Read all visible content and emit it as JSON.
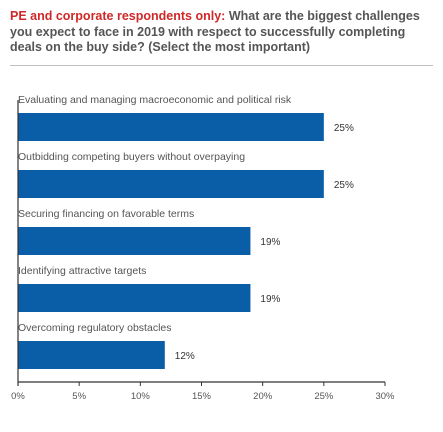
{
  "title": {
    "lead": "PE and corporate respondents only:",
    "text": "What are the biggest challenges you expect to face in 2019 with respect to successfully completing deals on the buy side? (Select the most important)"
  },
  "colors": {
    "bar": "#0a5ea8",
    "accent": "#d02828",
    "axis": "#333333"
  },
  "chart_data": {
    "type": "bar",
    "orientation": "horizontal",
    "categories": [
      "Evaluating and managing macroeconomic and political risk",
      "Outbidding competing buyers without overpaying",
      "Securing financing on favorable terms",
      "Identifying attractive targets",
      "Overcoming regulatory obstacles"
    ],
    "values": [
      25,
      25,
      19,
      19,
      12
    ],
    "value_labels": [
      "25%",
      "25%",
      "19%",
      "19%",
      "12%"
    ],
    "xlim": [
      0,
      30
    ],
    "ticks": [
      0,
      5,
      10,
      15,
      20,
      25,
      30
    ],
    "tick_labels": [
      "0%",
      "5%",
      "10%",
      "15%",
      "20%",
      "25%",
      "30%"
    ],
    "grid": false
  }
}
